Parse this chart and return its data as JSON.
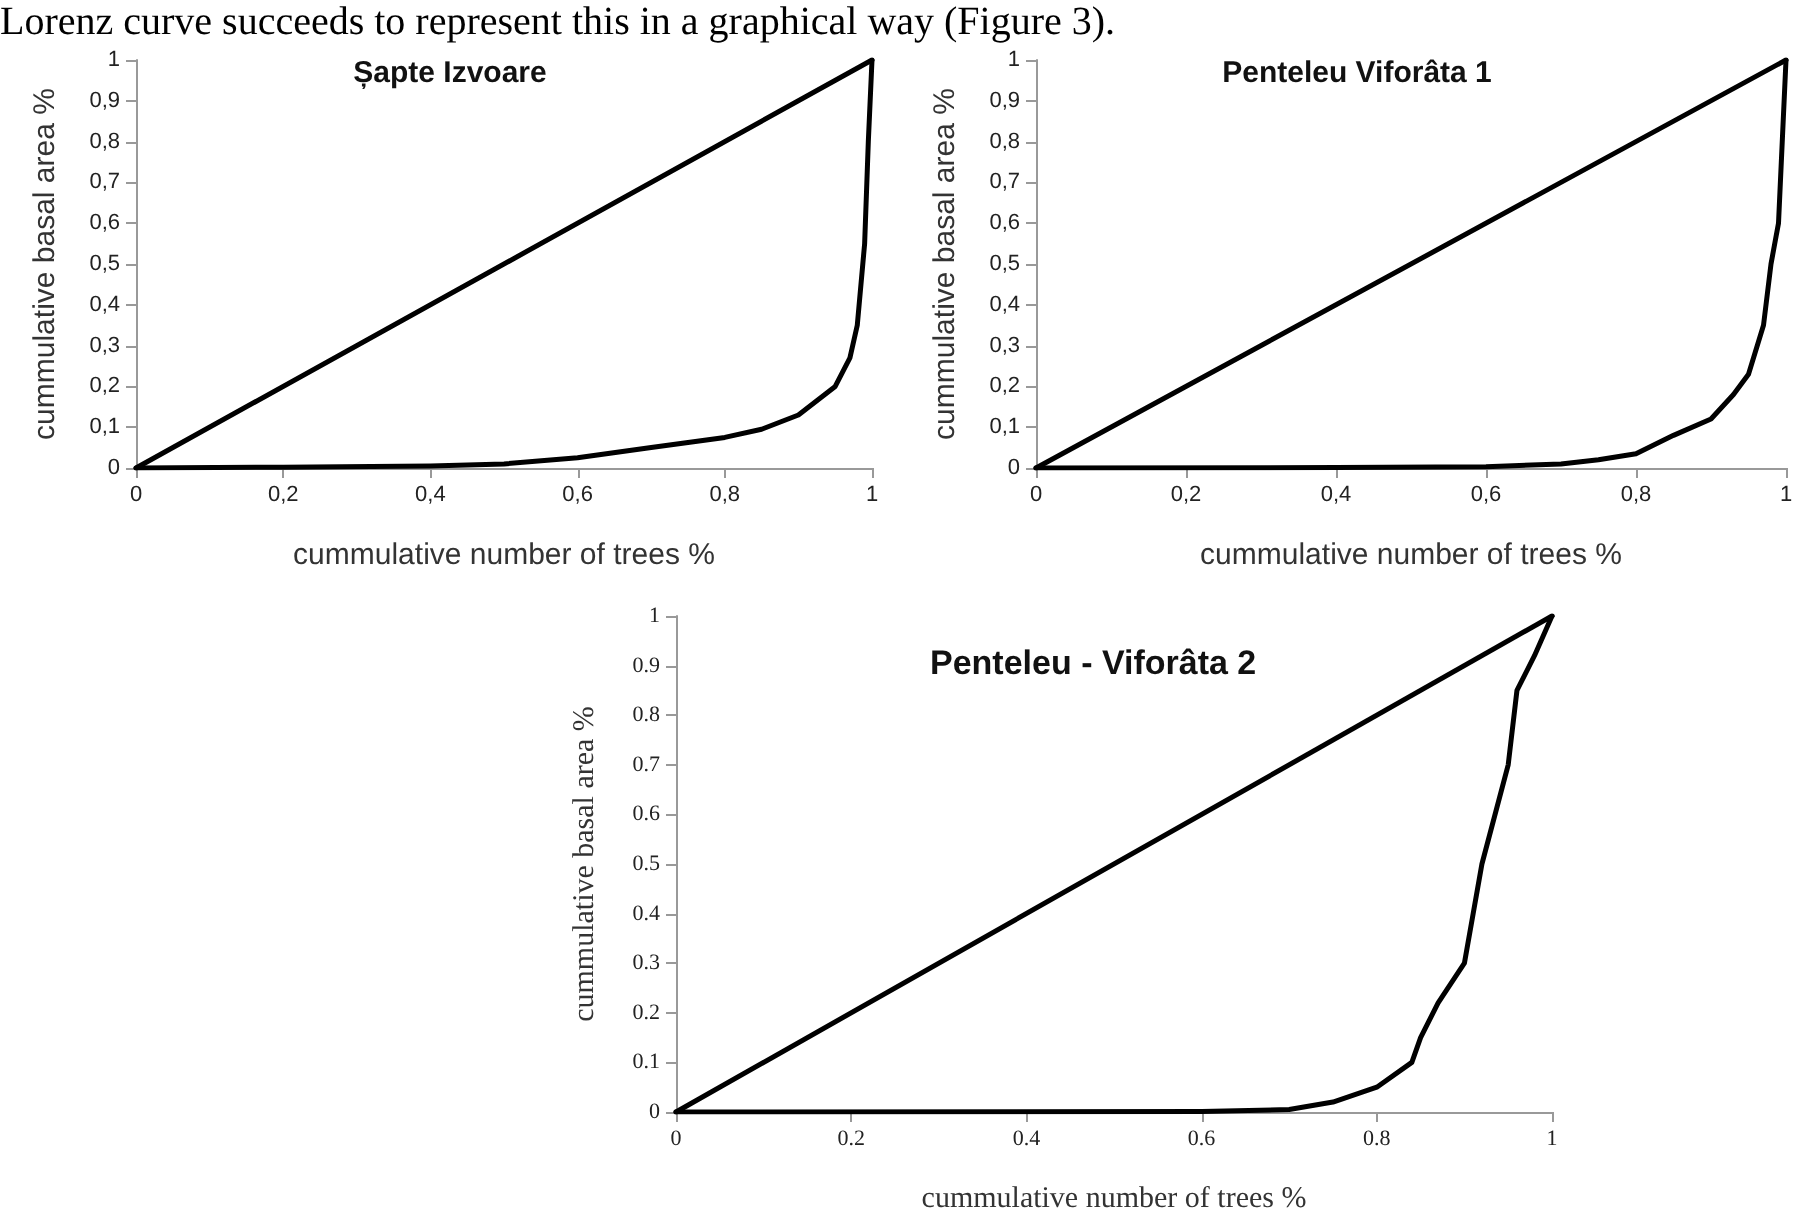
{
  "chart_data": [
    {
      "type": "line",
      "title": "Șapte Izvoare",
      "xlabel": "cummulative number of trees %",
      "ylabel": "cummulative basal area %",
      "annotations": [
        "Lorenz curve succeeds to represent this in a graphical way (Figure 3)."
      ],
      "series": [
        {
          "color": "#000000",
          "x": [
            0,
            1
          ],
          "values": [
            0,
            1
          ]
        },
        {
          "color": "#000000",
          "x": [
            0,
            0.2,
            0.4,
            0.5,
            0.6,
            0.7,
            0.8,
            0.85,
            0.9,
            0.95,
            0.97,
            0.98,
            0.99,
            0.995,
            1
          ],
          "values": [
            0,
            0.002,
            0.005,
            0.01,
            0.025,
            0.05,
            0.075,
            0.095,
            0.13,
            0.2,
            0.27,
            0.35,
            0.55,
            0.8,
            1
          ]
        }
      ],
      "xlim": [
        0,
        1
      ],
      "ylim": [
        0,
        1
      ],
      "xticks": [
        0,
        {
          "value": 0.2,
          "label": "0,2"
        },
        {
          "value": 0.4,
          "label": "0,4"
        },
        {
          "value": 0.6,
          "label": "0,6"
        },
        {
          "value": 0.8,
          "label": "0,8"
        },
        1
      ],
      "yticks": [
        0,
        {
          "value": 0.1,
          "label": "0,1"
        },
        {
          "value": 0.2,
          "label": "0,2"
        },
        {
          "value": 0.3,
          "label": "0,3"
        },
        {
          "value": 0.4,
          "label": "0,4"
        },
        {
          "value": 0.5,
          "label": "0,5"
        },
        {
          "value": 0.6,
          "label": "0,6"
        },
        {
          "value": 0.7,
          "label": "0,7"
        },
        {
          "value": 0.8,
          "label": "0,8"
        },
        {
          "value": 0.9,
          "label": "0,9"
        },
        1
      ],
      "grid": false,
      "marker": "none",
      "line_style": "solid"
    },
    {
      "type": "line",
      "title": "Penteleu Viforâta 1",
      "xlabel": "cummulative number of trees %",
      "ylabel": "cummulative basal area %",
      "series": [
        {
          "color": "#000000",
          "x": [
            0,
            1
          ],
          "values": [
            0,
            1
          ]
        },
        {
          "color": "#000000",
          "x": [
            0,
            0.4,
            0.6,
            0.7,
            0.75,
            0.8,
            0.85,
            0.9,
            0.93,
            0.95,
            0.97,
            0.98,
            0.99,
            1
          ],
          "values": [
            0,
            0.001,
            0.003,
            0.01,
            0.02,
            0.035,
            0.08,
            0.12,
            0.18,
            0.23,
            0.35,
            0.5,
            0.6,
            1
          ]
        }
      ],
      "xlim": [
        0,
        1
      ],
      "ylim": [
        0,
        1
      ],
      "xticks": [
        0,
        {
          "value": 0.2,
          "label": "0,2"
        },
        {
          "value": 0.4,
          "label": "0,4"
        },
        {
          "value": 0.6,
          "label": "0,6"
        },
        {
          "value": 0.8,
          "label": "0,8"
        },
        1
      ],
      "yticks": [
        0,
        {
          "value": 0.1,
          "label": "0,1"
        },
        {
          "value": 0.2,
          "label": "0,2"
        },
        {
          "value": 0.3,
          "label": "0,3"
        },
        {
          "value": 0.4,
          "label": "0,4"
        },
        {
          "value": 0.5,
          "label": "0,5"
        },
        {
          "value": 0.6,
          "label": "0,6"
        },
        {
          "value": 0.7,
          "label": "0,7"
        },
        {
          "value": 0.8,
          "label": "0,8"
        },
        {
          "value": 0.9,
          "label": "0,9"
        },
        1
      ],
      "grid": false,
      "marker": "none",
      "line_style": "solid"
    },
    {
      "type": "line",
      "title": "Penteleu - Viforâta 2",
      "xlabel": "cummulative number of trees %",
      "ylabel": "cummulative basal area %",
      "series": [
        {
          "color": "#000000",
          "x": [
            0,
            1
          ],
          "values": [
            0,
            1
          ]
        },
        {
          "color": "#000000",
          "x": [
            0,
            0.6,
            0.7,
            0.75,
            0.8,
            0.84,
            0.85,
            0.87,
            0.9,
            0.91,
            0.92,
            0.95,
            0.96,
            0.98,
            1
          ],
          "values": [
            0,
            0.001,
            0.005,
            0.02,
            0.05,
            0.1,
            0.15,
            0.22,
            0.3,
            0.4,
            0.5,
            0.7,
            0.85,
            0.92,
            1
          ]
        }
      ],
      "xlim": [
        0,
        1
      ],
      "ylim": [
        0,
        1
      ],
      "xticks": [
        0,
        0.2,
        0.4,
        0.6,
        0.8,
        1
      ],
      "yticks": [
        0,
        0.1,
        0.2,
        0.3,
        0.4,
        0.5,
        0.6,
        0.7,
        0.8,
        0.9,
        1
      ],
      "grid": false,
      "marker": "none",
      "line_style": "solid"
    }
  ]
}
